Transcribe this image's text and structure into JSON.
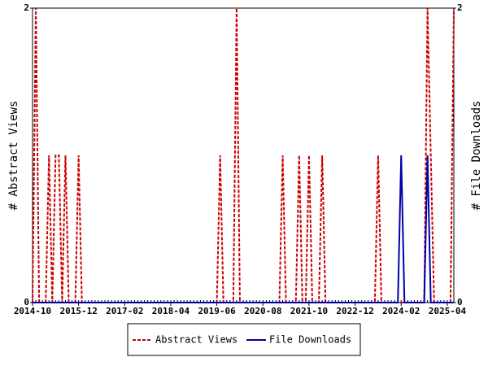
{
  "chart_data": {
    "type": "line",
    "categories": [
      "2014-10",
      null,
      null,
      null,
      null,
      null,
      null,
      null,
      null,
      null,
      null,
      null,
      null,
      null,
      "2015-12",
      null,
      null,
      null,
      null,
      null,
      null,
      null,
      null,
      null,
      null,
      null,
      null,
      null,
      "2017-02",
      null,
      null,
      null,
      null,
      null,
      null,
      null,
      null,
      null,
      null,
      null,
      null,
      null,
      "2018-04",
      null,
      null,
      null,
      null,
      null,
      null,
      null,
      null,
      null,
      null,
      null,
      null,
      null,
      "2019-06",
      null,
      null,
      null,
      null,
      null,
      null,
      null,
      null,
      null,
      null,
      null,
      null,
      null,
      "2020-08",
      null,
      null,
      null,
      null,
      null,
      null,
      null,
      null,
      null,
      null,
      null,
      null,
      null,
      "2021-10",
      null,
      null,
      null,
      null,
      null,
      null,
      null,
      null,
      null,
      null,
      null,
      null,
      null,
      "2022-12",
      null,
      null,
      null,
      null,
      null,
      null,
      null,
      null,
      null,
      null,
      null,
      null,
      null,
      "2024-02",
      null,
      null,
      null,
      null,
      null,
      null,
      null,
      null,
      null,
      null,
      null,
      null,
      null,
      "2025-04",
      null,
      null
    ],
    "series": [
      {
        "name": "Abstract Views",
        "color": "#cc0000",
        "dash": true,
        "values": [
          0,
          2,
          0,
          0,
          0,
          1,
          0,
          1,
          1,
          0,
          1,
          0,
          0,
          0,
          1,
          0,
          0,
          0,
          0,
          0,
          0,
          0,
          0,
          0,
          0,
          0,
          0,
          0,
          0,
          0,
          0,
          0,
          0,
          0,
          0,
          0,
          0,
          0,
          0,
          0,
          0,
          0,
          0,
          0,
          0,
          0,
          0,
          0,
          0,
          0,
          0,
          0,
          0,
          0,
          0,
          0,
          0,
          1,
          0,
          0,
          0,
          0,
          2,
          0,
          0,
          0,
          0,
          0,
          0,
          0,
          0,
          0,
          0,
          0,
          0,
          0,
          1,
          0,
          0,
          0,
          0,
          1,
          0,
          0,
          1,
          0,
          0,
          0,
          1,
          0,
          0,
          0,
          0,
          0,
          0,
          0,
          0,
          0,
          0,
          0,
          0,
          0,
          0,
          0,
          0,
          1,
          0,
          0,
          0,
          0,
          0,
          0,
          0,
          0,
          0,
          0,
          0,
          0,
          0,
          0,
          2,
          1,
          0,
          0,
          0,
          0,
          0,
          0,
          2
        ]
      },
      {
        "name": "File Downloads",
        "color": "#0000aa",
        "dash": false,
        "axis": "y2",
        "values": [
          0,
          0,
          0,
          0,
          0,
          0,
          0,
          0,
          0,
          0,
          0,
          0,
          0,
          0,
          0,
          0,
          0,
          0,
          0,
          0,
          0,
          0,
          0,
          0,
          0,
          0,
          0,
          0,
          0,
          0,
          0,
          0,
          0,
          0,
          0,
          0,
          0,
          0,
          0,
          0,
          0,
          0,
          0,
          0,
          0,
          0,
          0,
          0,
          0,
          0,
          0,
          0,
          0,
          0,
          0,
          0,
          0,
          0,
          0,
          0,
          0,
          0,
          0,
          0,
          0,
          0,
          0,
          0,
          0,
          0,
          0,
          0,
          0,
          0,
          0,
          0,
          0,
          0,
          0,
          0,
          0,
          0,
          0,
          0,
          0,
          0,
          0,
          0,
          0,
          0,
          0,
          0,
          0,
          0,
          0,
          0,
          0,
          0,
          0,
          0,
          0,
          0,
          0,
          0,
          0,
          0,
          0,
          0,
          0,
          0,
          0,
          0,
          1,
          0,
          0,
          0,
          0,
          0,
          0,
          0,
          1,
          0,
          0,
          0,
          0,
          0,
          0,
          0,
          0
        ]
      }
    ],
    "y_label": "# Abstract Views",
    "y2_label": "# File Downloads",
    "ylim": [
      0,
      2
    ],
    "yticks": [
      0,
      2
    ],
    "y2lim": [
      0,
      2
    ],
    "y2ticks": [
      0,
      2
    ],
    "legend": "bottom"
  }
}
